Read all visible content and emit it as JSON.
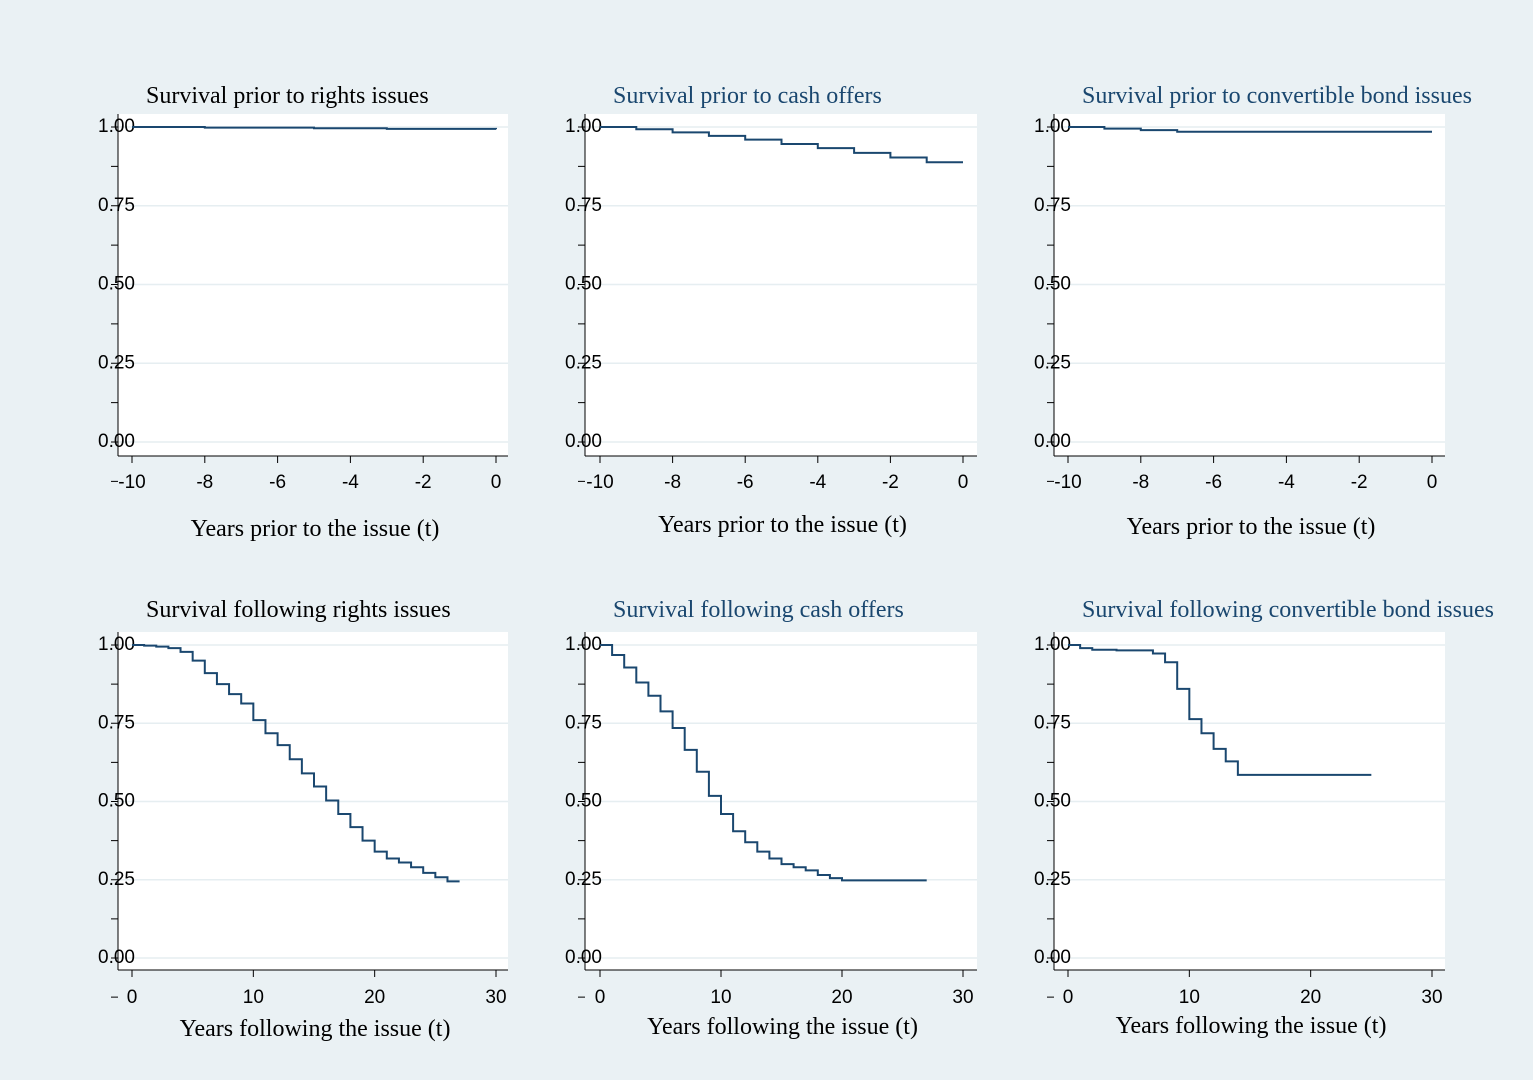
{
  "colors": {
    "background": "#eaf1f4",
    "plot_background": "#ffffff",
    "series_line": "#1a476f",
    "gridline": "#e6eef1",
    "axis": "#000000"
  },
  "chart_data": [
    {
      "type": "line",
      "step": true,
      "title": "Survival prior to rights issues",
      "title_color": "#000000",
      "xlabel": "Years prior to the issue (t)",
      "ylabel": "",
      "xlim": [
        -10,
        0
      ],
      "ylim": [
        0,
        1
      ],
      "xticks": [
        "-10",
        "-8",
        "-6",
        "-4",
        "-2",
        "0"
      ],
      "yticks": [
        "0.00",
        "0.25",
        "0.50",
        "0.75",
        "1.00"
      ],
      "grid": true,
      "series": [
        {
          "x": [
            -10,
            -8,
            -5,
            -3,
            0
          ],
          "y": [
            1.0,
            0.998,
            0.996,
            0.994,
            0.993
          ]
        }
      ]
    },
    {
      "type": "line",
      "step": true,
      "title": "Survival prior to cash offers",
      "title_color": "#1a476f",
      "xlabel": "Years prior to the issue (t)",
      "ylabel": "",
      "xlim": [
        -10,
        0
      ],
      "ylim": [
        0,
        1
      ],
      "xticks": [
        "-10",
        "-8",
        "-6",
        "-4",
        "-2",
        "0"
      ],
      "yticks": [
        "0.00",
        "0.25",
        "0.50",
        "0.75",
        "1.00"
      ],
      "grid": true,
      "series": [
        {
          "x": [
            -10,
            -9,
            -8,
            -7,
            -6,
            -5,
            -4,
            -3,
            -2,
            -1,
            0
          ],
          "y": [
            1.0,
            0.993,
            0.983,
            0.972,
            0.96,
            0.946,
            0.933,
            0.918,
            0.903,
            0.888,
            0.888
          ]
        }
      ]
    },
    {
      "type": "line",
      "step": true,
      "title": "Survival prior to convertible bond issues",
      "title_color": "#1a476f",
      "xlabel": "Years prior to the issue (t)",
      "ylabel": "",
      "xlim": [
        -10,
        0
      ],
      "ylim": [
        0,
        1
      ],
      "xticks": [
        "-10",
        "-8",
        "-6",
        "-4",
        "-2",
        "0"
      ],
      "yticks": [
        "0.00",
        "0.25",
        "0.50",
        "0.75",
        "1.00"
      ],
      "grid": true,
      "series": [
        {
          "x": [
            -10,
            -9,
            -8,
            -7,
            0
          ],
          "y": [
            1.0,
            0.995,
            0.99,
            0.985,
            0.985
          ]
        }
      ]
    },
    {
      "type": "line",
      "step": true,
      "title": "Survival following rights issues",
      "title_color": "#000000",
      "xlabel": "Years following the issue (t)",
      "ylabel": "",
      "xlim": [
        0,
        30
      ],
      "ylim": [
        0,
        1
      ],
      "xticks": [
        "0",
        "10",
        "20",
        "30"
      ],
      "yticks": [
        "0.00",
        "0.25",
        "0.50",
        "0.75",
        "1.00"
      ],
      "grid": true,
      "series": [
        {
          "x": [
            0,
            1,
            2,
            3,
            4,
            5,
            6,
            7,
            8,
            9,
            10,
            11,
            12,
            13,
            14,
            15,
            16,
            17,
            18,
            19,
            20,
            21,
            22,
            23,
            24,
            25,
            26,
            27
          ],
          "y": [
            1.0,
            0.998,
            0.995,
            0.99,
            0.978,
            0.95,
            0.91,
            0.875,
            0.843,
            0.813,
            0.76,
            0.718,
            0.68,
            0.635,
            0.59,
            0.548,
            0.503,
            0.46,
            0.418,
            0.375,
            0.34,
            0.318,
            0.305,
            0.29,
            0.272,
            0.258,
            0.245,
            0.245
          ]
        }
      ]
    },
    {
      "type": "line",
      "step": true,
      "title": "Survival following cash offers",
      "title_color": "#1a476f",
      "xlabel": "Years following the issue (t)",
      "ylabel": "",
      "xlim": [
        0,
        30
      ],
      "ylim": [
        0,
        1
      ],
      "xticks": [
        "0",
        "10",
        "20",
        "30"
      ],
      "yticks": [
        "0.00",
        "0.25",
        "0.50",
        "0.75",
        "1.00"
      ],
      "grid": true,
      "series": [
        {
          "x": [
            0,
            1,
            2,
            3,
            4,
            5,
            6,
            7,
            8,
            9,
            10,
            11,
            12,
            13,
            14,
            15,
            16,
            17,
            18,
            19,
            20,
            27
          ],
          "y": [
            1.0,
            0.968,
            0.928,
            0.88,
            0.838,
            0.788,
            0.735,
            0.665,
            0.595,
            0.518,
            0.46,
            0.405,
            0.37,
            0.34,
            0.318,
            0.3,
            0.29,
            0.28,
            0.265,
            0.255,
            0.248,
            0.248
          ]
        }
      ]
    },
    {
      "type": "line",
      "step": true,
      "title": "Survival following convertible bond issues",
      "title_color": "#1a476f",
      "xlabel": "Years following the issue (t)",
      "ylabel": "",
      "xlim": [
        0,
        30
      ],
      "ylim": [
        0,
        1
      ],
      "xticks": [
        "0",
        "10",
        "20",
        "30"
      ],
      "yticks": [
        "0.00",
        "0.25",
        "0.50",
        "0.75",
        "1.00"
      ],
      "grid": true,
      "series": [
        {
          "x": [
            0,
            1,
            2,
            4,
            7,
            8,
            9,
            10,
            11,
            12,
            13,
            14,
            25
          ],
          "y": [
            1.0,
            0.99,
            0.985,
            0.983,
            0.973,
            0.945,
            0.86,
            0.763,
            0.718,
            0.668,
            0.628,
            0.585,
            0.585
          ]
        }
      ]
    }
  ]
}
